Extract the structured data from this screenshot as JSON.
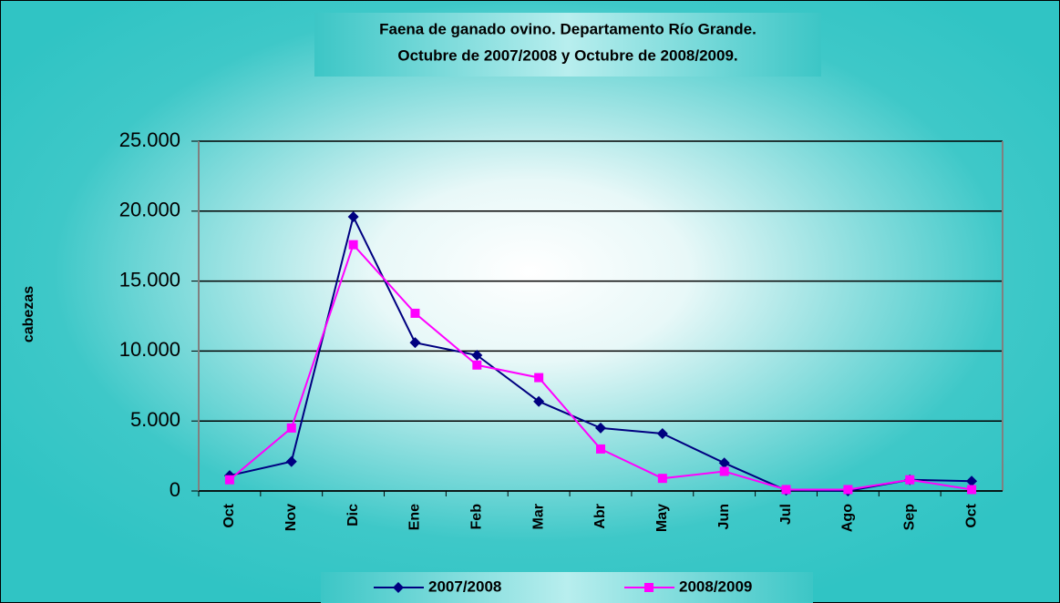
{
  "chart_data": {
    "type": "line",
    "title": "Faena de ganado ovino. Departamento Río Grande.",
    "subtitle": "Octubre de 2007/2008 y Octubre de 2008/2009.",
    "ylabel": "cabezas",
    "categories": [
      "Oct",
      "Nov",
      "Dic",
      "Ene",
      "Feb",
      "Mar",
      "Abr",
      "May",
      "Jun",
      "Jul",
      "Ago",
      "Sep",
      "Oct"
    ],
    "series": [
      {
        "name": "2007/2008",
        "color": "#000080",
        "marker": "diamond",
        "values": [
          1100,
          2100,
          19600,
          10600,
          9700,
          6400,
          4500,
          4100,
          2000,
          50,
          0,
          800,
          700
        ]
      },
      {
        "name": "2008/2009",
        "color": "#ff00ff",
        "marker": "square",
        "values": [
          800,
          4500,
          17600,
          12700,
          9000,
          8100,
          3000,
          900,
          1400,
          100,
          100,
          800,
          100
        ]
      }
    ],
    "ylim": [
      0,
      25000
    ],
    "yticks": [
      0,
      {
        "value": 5000,
        "label": "5.000"
      },
      {
        "value": 10000,
        "label": "10.000"
      },
      {
        "value": 15000,
        "label": "15.000"
      },
      {
        "value": 20000,
        "label": "20.000"
      },
      {
        "value": 25000,
        "label": "25.000"
      }
    ],
    "grid": true,
    "legend": "bottom"
  }
}
